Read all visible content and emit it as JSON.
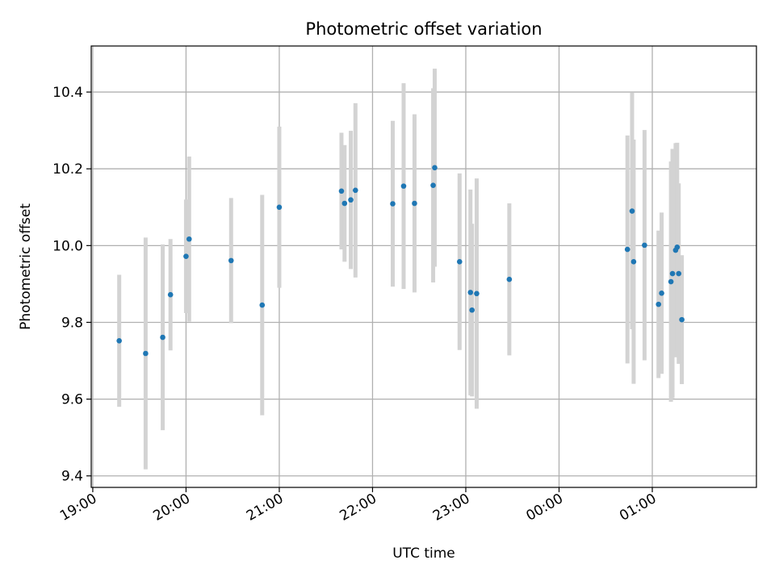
{
  "chart_data": {
    "type": "scatter",
    "title": "Photometric offset variation",
    "xlabel": "UTC time",
    "ylabel": "Photometric offset",
    "x_unit": "UTC time (HH:MM); times after midnight roll over to next day",
    "xlim": [
      "18:59",
      "02:07"
    ],
    "ylim": [
      9.37,
      10.52
    ],
    "xticks": [
      "19:00",
      "20:00",
      "21:00",
      "22:00",
      "23:00",
      "00:00",
      "01:00"
    ],
    "yticks": [
      9.4,
      9.6,
      9.8,
      10.0,
      10.2,
      10.4
    ],
    "ytick_labels": [
      "9.4",
      "9.6",
      "9.8",
      "10.0",
      "10.2",
      "10.4"
    ],
    "grid": true,
    "marker_color": "#1f77b4",
    "errorbar_color": "#d3d3d3",
    "series": [
      {
        "points": [
          {
            "x": "19:17",
            "y": 9.752,
            "yerr": 0.172
          },
          {
            "x": "19:34",
            "y": 9.719,
            "yerr": 0.302
          },
          {
            "x": "19:45",
            "y": 9.761,
            "yerr": 0.242
          },
          {
            "x": "19:50",
            "y": 9.872,
            "yerr": 0.145
          },
          {
            "x": "20:00",
            "y": 9.972,
            "yerr": 0.148
          },
          {
            "x": "20:02",
            "y": 10.017,
            "yerr": 0.215
          },
          {
            "x": "20:29",
            "y": 9.961,
            "yerr": 0.163
          },
          {
            "x": "20:49",
            "y": 9.845,
            "yerr": 0.287
          },
          {
            "x": "21:00",
            "y": 10.1,
            "yerr": 0.21
          },
          {
            "x": "21:40",
            "y": 10.142,
            "yerr": 0.152
          },
          {
            "x": "21:42",
            "y": 10.11,
            "yerr": 0.152
          },
          {
            "x": "21:46",
            "y": 10.119,
            "yerr": 0.18
          },
          {
            "x": "21:49",
            "y": 10.144,
            "yerr": 0.227
          },
          {
            "x": "22:13",
            "y": 10.109,
            "yerr": 0.216
          },
          {
            "x": "22:20",
            "y": 10.155,
            "yerr": 0.268
          },
          {
            "x": "22:27",
            "y": 10.11,
            "yerr": 0.232
          },
          {
            "x": "22:39",
            "y": 10.157,
            "yerr": 0.253
          },
          {
            "x": "22:40",
            "y": 10.203,
            "yerr": 0.258
          },
          {
            "x": "22:56",
            "y": 9.958,
            "yerr": 0.23
          },
          {
            "x": "23:03",
            "y": 9.878,
            "yerr": 0.268
          },
          {
            "x": "23:04",
            "y": 9.832,
            "yerr": 0.225
          },
          {
            "x": "23:07",
            "y": 9.875,
            "yerr": 0.3
          },
          {
            "x": "23:28",
            "y": 9.912,
            "yerr": 0.198
          },
          {
            "x": "00:44",
            "y": 9.99,
            "yerr": 0.297
          },
          {
            "x": "00:47",
            "y": 10.09,
            "yerr": 0.308
          },
          {
            "x": "00:48",
            "y": 9.958,
            "yerr": 0.318
          },
          {
            "x": "00:55",
            "y": 10.001,
            "yerr": 0.3
          },
          {
            "x": "01:04",
            "y": 9.847,
            "yerr": 0.192
          },
          {
            "x": "01:06",
            "y": 9.876,
            "yerr": 0.21
          },
          {
            "x": "01:12",
            "y": 9.906,
            "yerr": 0.313
          },
          {
            "x": "01:13",
            "y": 9.927,
            "yerr": 0.325
          },
          {
            "x": "01:15",
            "y": 9.988,
            "yerr": 0.279
          },
          {
            "x": "01:16",
            "y": 9.996,
            "yerr": 0.272
          },
          {
            "x": "01:17",
            "y": 9.927,
            "yerr": 0.235
          },
          {
            "x": "01:19",
            "y": 9.807,
            "yerr": 0.168
          }
        ]
      }
    ]
  }
}
